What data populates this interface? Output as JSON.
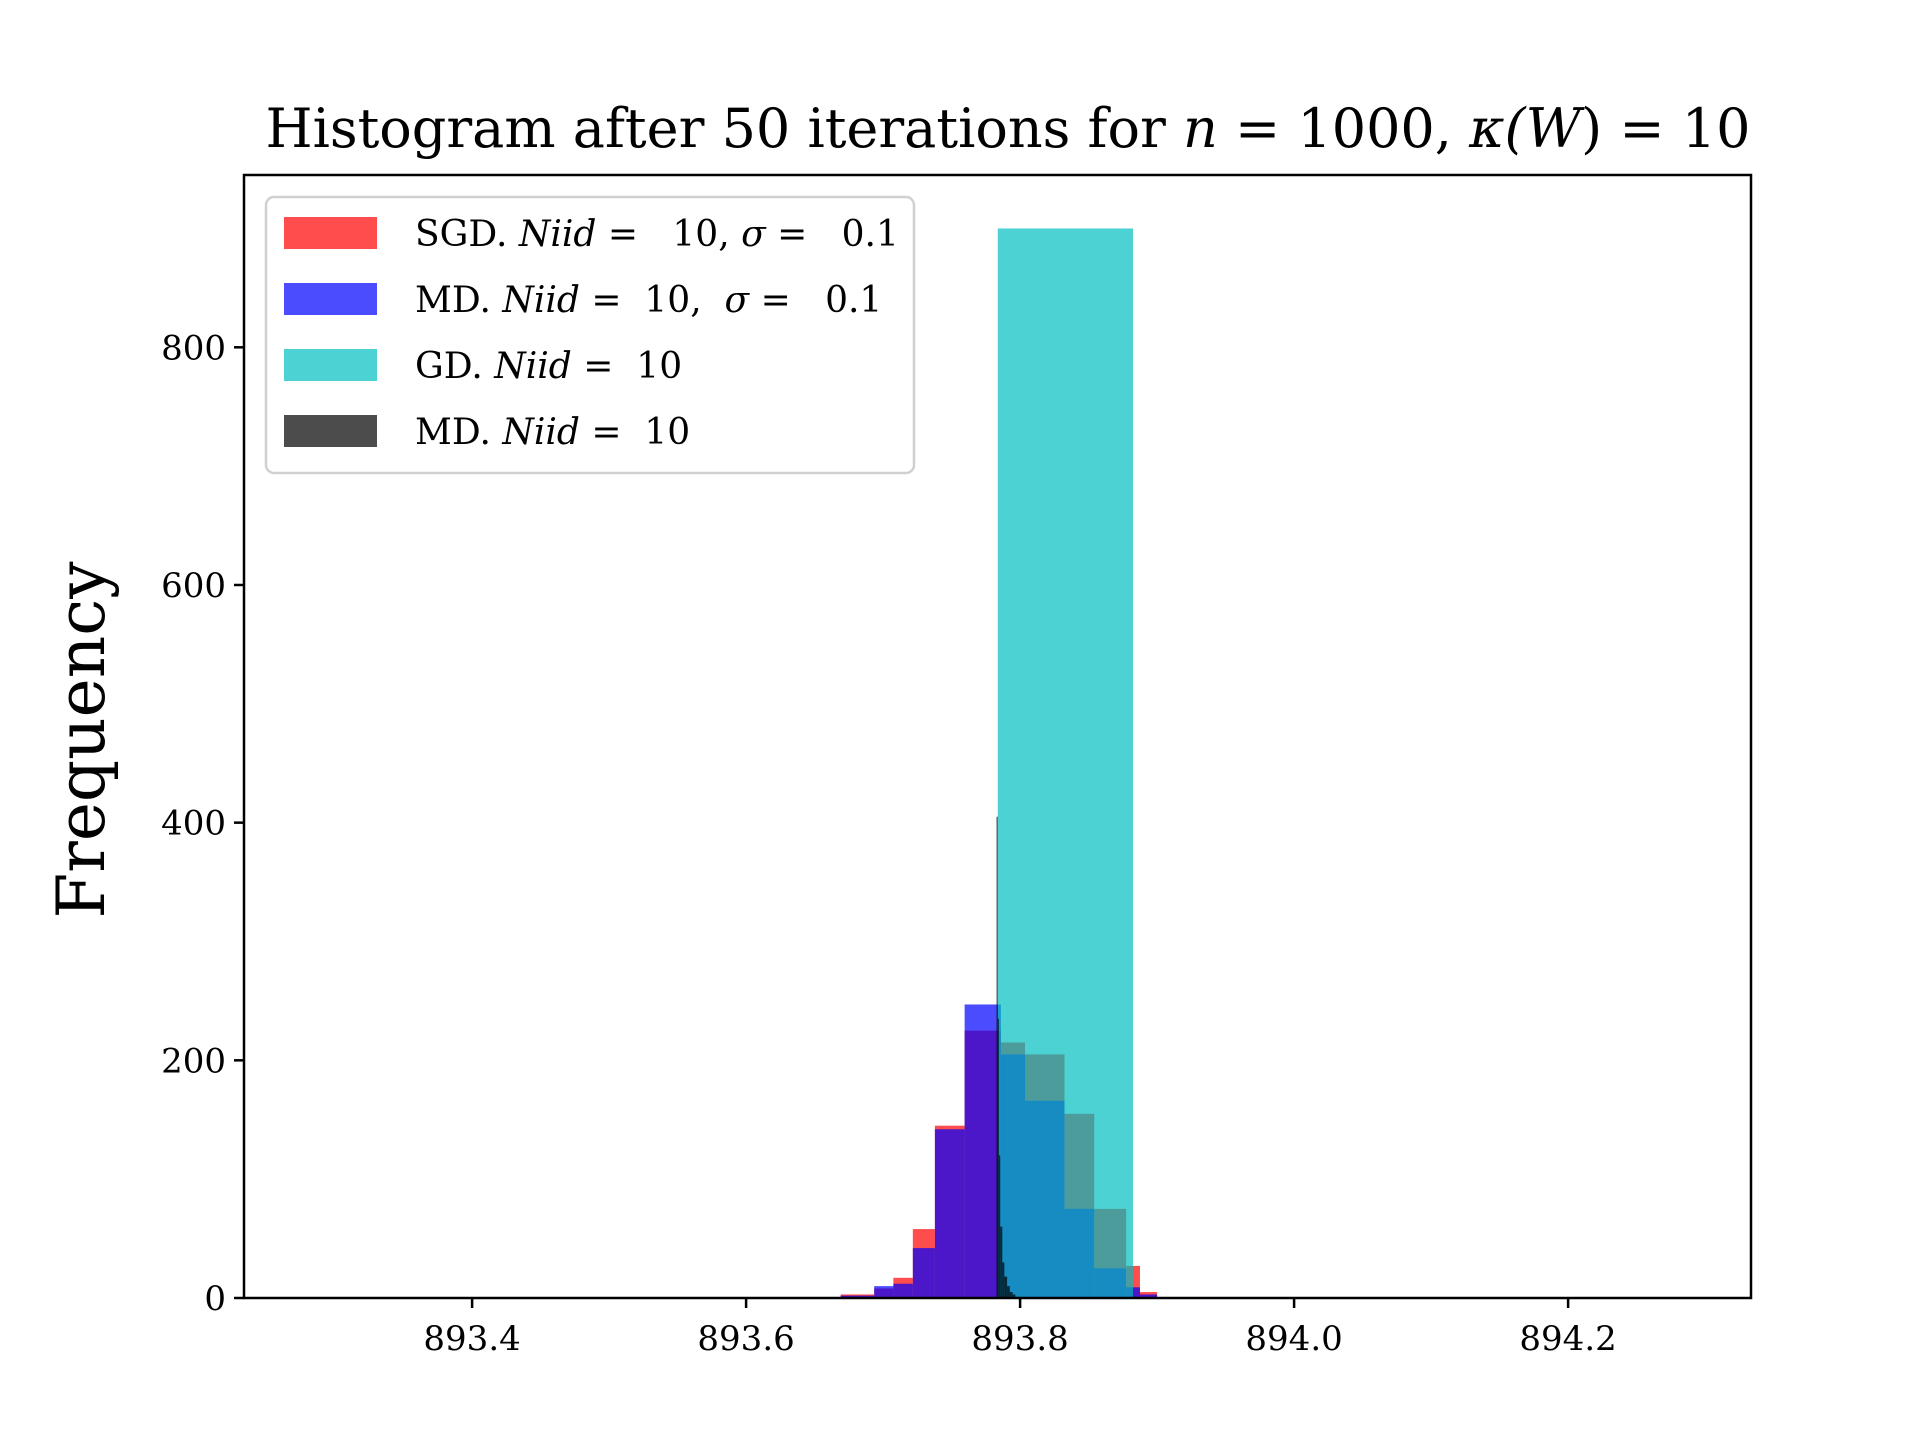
{
  "chart_data": {
    "type": "bar",
    "title": {
      "prefix": "Histogram after 50 iterations for ",
      "n_var": "n",
      "n_value": " = 1000, ",
      "kappa": "κ(",
      "w_var": "W",
      "kappa_value": ") = 10"
    },
    "xlabel": "",
    "ylabel": "Frequency",
    "xlim": [
      893.2335,
      894.3335
    ],
    "ylim": [
      0,
      945
    ],
    "x_ticks": [
      893.4,
      893.6,
      893.8,
      894.0,
      894.2
    ],
    "x_tick_labels": [
      "893.4",
      "893.6",
      "893.8",
      "894.0",
      "894.2"
    ],
    "y_ticks": [
      0,
      200,
      400,
      600,
      800
    ],
    "y_tick_labels": [
      "0",
      "200",
      "400",
      "600",
      "800"
    ],
    "grid": false,
    "legend_position": "top-left",
    "series": [
      {
        "name": "SGD. Niid = 10, σ = 0.1",
        "legend": {
          "label": "SGD. ",
          "var": "Niid",
          "eq": " =   10, ",
          "sigma": "σ",
          "sigma_eq": " =   0.1"
        },
        "color": "#ff0000",
        "opacity": 0.7,
        "bins": [
          {
            "x0": 893.669,
            "x1": 893.6935,
            "value": 3
          },
          {
            "x0": 893.6935,
            "x1": 893.7075,
            "value": 8
          },
          {
            "x0": 893.7075,
            "x1": 893.7217,
            "value": 17
          },
          {
            "x0": 893.7217,
            "x1": 893.7378,
            "value": 58
          },
          {
            "x0": 893.7378,
            "x1": 893.7595,
            "value": 145
          },
          {
            "x0": 893.7595,
            "x1": 893.786,
            "value": 225
          },
          {
            "x0": 893.786,
            "x1": 893.8036,
            "value": 215
          },
          {
            "x0": 893.8036,
            "x1": 893.8324,
            "value": 205
          },
          {
            "x0": 893.8324,
            "x1": 893.8541,
            "value": 155
          },
          {
            "x0": 893.8541,
            "x1": 893.8774,
            "value": 75
          },
          {
            "x0": 893.8774,
            "x1": 893.8875,
            "value": 27
          },
          {
            "x0": 893.8875,
            "x1": 893.9,
            "value": 5
          }
        ]
      },
      {
        "name": "MD. Niid = 10, σ = 0.1",
        "legend": {
          "label": "MD. ",
          "var": "Niid",
          "eq": " =  10,  ",
          "sigma": "σ",
          "sigma_eq": " =   0.1"
        },
        "color": "#0000ff",
        "opacity": 0.7,
        "bins": [
          {
            "x0": 893.669,
            "x1": 893.6935,
            "value": 2
          },
          {
            "x0": 893.6935,
            "x1": 893.7075,
            "value": 10
          },
          {
            "x0": 893.7075,
            "x1": 893.7217,
            "value": 12
          },
          {
            "x0": 893.7217,
            "x1": 893.7378,
            "value": 42
          },
          {
            "x0": 893.7378,
            "x1": 893.7595,
            "value": 142
          },
          {
            "x0": 893.7595,
            "x1": 893.786,
            "value": 247
          },
          {
            "x0": 893.786,
            "x1": 893.8036,
            "value": 205
          },
          {
            "x0": 893.8036,
            "x1": 893.8324,
            "value": 166
          },
          {
            "x0": 893.8324,
            "x1": 893.8541,
            "value": 75
          },
          {
            "x0": 893.8541,
            "x1": 893.8774,
            "value": 25
          },
          {
            "x0": 893.8774,
            "x1": 893.8875,
            "value": 9
          },
          {
            "x0": 893.8875,
            "x1": 893.9,
            "value": 3
          }
        ]
      },
      {
        "name": "GD. Niid = 10",
        "legend": {
          "label": "GD. ",
          "var": "Niid",
          "eq": " =  10"
        },
        "color": "#00bfbf",
        "opacity": 0.7,
        "bins": [
          {
            "x0": 893.7837,
            "x1": 893.8824,
            "value": 900
          }
        ]
      },
      {
        "name": "MD. Niid = 10",
        "legend": {
          "label": "MD. ",
          "var": "Niid",
          "eq": " =  10"
        },
        "color": "#000000",
        "opacity": 0.7,
        "bins": [
          {
            "x0": 893.7828,
            "x1": 893.7837,
            "value": 405
          },
          {
            "x0": 893.7837,
            "x1": 893.7845,
            "value": 235
          },
          {
            "x0": 893.7845,
            "x1": 893.7855,
            "value": 120
          },
          {
            "x0": 893.7855,
            "x1": 893.787,
            "value": 60
          },
          {
            "x0": 893.787,
            "x1": 893.7885,
            "value": 30
          },
          {
            "x0": 893.7885,
            "x1": 893.7905,
            "value": 18
          },
          {
            "x0": 893.7905,
            "x1": 893.7925,
            "value": 10
          },
          {
            "x0": 893.7925,
            "x1": 893.7945,
            "value": 5
          },
          {
            "x0": 893.7945,
            "x1": 893.7965,
            "value": 3
          }
        ]
      }
    ]
  }
}
